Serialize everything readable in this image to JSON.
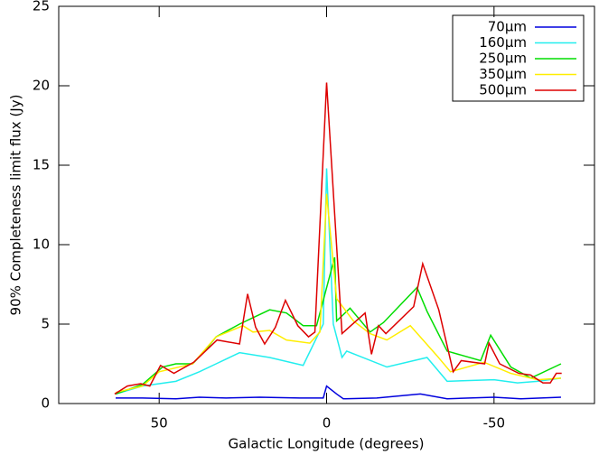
{
  "chart_data": {
    "type": "line",
    "xlabel": "Galactic Longitude (degrees)",
    "ylabel": "90% Completeness limit flux (Jy)",
    "xlim": [
      80,
      -80
    ],
    "xticks": [
      50,
      0,
      -50
    ],
    "ylim": [
      0,
      25
    ],
    "yticks": [
      0,
      5,
      10,
      15,
      20,
      25
    ],
    "legend": "upper right",
    "series": [
      {
        "name": "70µm",
        "color": "#0000dd",
        "x": [
          63,
          55,
          45,
          38,
          30,
          20,
          8,
          1,
          0,
          -3,
          -5,
          -15,
          -28,
          -36,
          -50,
          -58,
          -70
        ],
        "values": [
          0.35,
          0.35,
          0.3,
          0.4,
          0.35,
          0.4,
          0.35,
          0.35,
          1.1,
          0.6,
          0.3,
          0.35,
          0.6,
          0.3,
          0.4,
          0.3,
          0.4
        ]
      },
      {
        "name": "160µm",
        "color": "#22eeee",
        "x": [
          63,
          55,
          45,
          38,
          33,
          26,
          17,
          7,
          1,
          0,
          -2,
          -4.6,
          -6,
          -18,
          -30,
          -36,
          -50,
          -57,
          -63,
          -70
        ],
        "values": [
          0.6,
          1.1,
          1.4,
          2.0,
          2.5,
          3.2,
          2.9,
          2.4,
          5.0,
          14.8,
          5.0,
          2.9,
          3.3,
          2.3,
          2.9,
          1.4,
          1.5,
          1.3,
          1.4,
          1.6
        ]
      },
      {
        "name": "250µm",
        "color": "#00dd00",
        "x": [
          63,
          55,
          49,
          45,
          40,
          36,
          33,
          26,
          22,
          17,
          12,
          7,
          3,
          -2.4,
          -3,
          -7,
          -13,
          -17,
          -27,
          -30,
          -36,
          -46,
          -49,
          -55,
          -61,
          -70
        ],
        "values": [
          0.6,
          1.2,
          2.3,
          2.5,
          2.5,
          3.4,
          4.2,
          5.0,
          5.4,
          5.9,
          5.7,
          4.9,
          4.9,
          9.2,
          5.2,
          6.0,
          4.5,
          5.1,
          7.3,
          5.8,
          3.3,
          2.7,
          4.3,
          2.3,
          1.6,
          2.5
        ]
      },
      {
        "name": "350µm",
        "color": "#ffee00",
        "x": [
          63,
          55,
          50,
          40,
          33,
          25,
          22,
          17,
          12,
          5,
          2,
          0,
          -3,
          -8,
          -13,
          -18,
          -25,
          -33,
          -37,
          -47,
          -55,
          -63,
          -70
        ],
        "values": [
          0.7,
          1.1,
          2.0,
          2.5,
          4.2,
          4.9,
          4.5,
          4.6,
          4.0,
          3.8,
          4.5,
          13.2,
          6.6,
          5.2,
          4.4,
          4.0,
          4.9,
          3.0,
          2.0,
          2.6,
          1.9,
          1.5,
          1.6
        ]
      },
      {
        "name": "500µm",
        "color": "#dd0000",
        "x": [
          63.3,
          59.5,
          55.5,
          52.8,
          49.6,
          45.6,
          39.7,
          32.7,
          26,
          23.6,
          21.2,
          18.5,
          15.3,
          12.3,
          8.6,
          5.4,
          3.5,
          0,
          -4.6,
          -7.2,
          -11.5,
          -13.4,
          -15.5,
          -17.7,
          -26,
          -28.7,
          -33.5,
          -37.8,
          -40.2,
          -47.2,
          -48.5,
          -51.7,
          -57.4,
          -60.9,
          -64.6,
          -66.8,
          -68.6,
          -70.2
        ],
        "values": [
          0.6,
          1.1,
          1.25,
          1.1,
          2.4,
          1.9,
          2.6,
          4.0,
          3.75,
          6.9,
          4.8,
          3.75,
          4.8,
          6.5,
          4.9,
          4.2,
          4.5,
          20.2,
          4.4,
          4.9,
          5.7,
          3.1,
          4.9,
          4.4,
          6.1,
          8.8,
          5.9,
          2.0,
          2.7,
          2.5,
          3.8,
          2.5,
          1.9,
          1.8,
          1.3,
          1.3,
          1.9,
          1.9
        ]
      }
    ]
  }
}
